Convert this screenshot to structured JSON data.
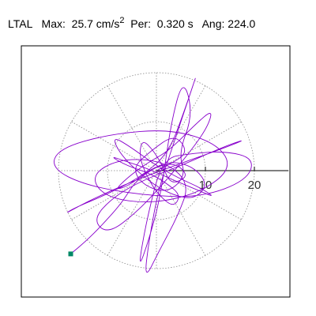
{
  "header": {
    "station": "LTAL",
    "max_label": "Max:",
    "max_value": "25.7 cm/s",
    "max_exp": "2",
    "per_label": "Per:",
    "per_value": "0.320 s",
    "ang_label": "Ang:",
    "ang_value": "224.0"
  },
  "colors": {
    "trace": "#8800cc",
    "grid": "#888888",
    "axis": "#000000",
    "end_marker": "#008866"
  },
  "chart_data": {
    "type": "particle-motion polar plot",
    "title": "LTAL   Max:  25.7 cm/s2  Per:  0.320 s   Ang: 224.0",
    "radial_ticks": [
      10,
      20
    ],
    "radial_tick_labels": [
      "10",
      "20"
    ],
    "rings": [
      10,
      20
    ],
    "spokes_deg": [
      0,
      30,
      60,
      90,
      120,
      150,
      180,
      210,
      240,
      270,
      300,
      330
    ],
    "rmax": 26,
    "grid": true,
    "end_marker": {
      "x": -17.5,
      "y": -17.0
    },
    "trace": [
      [
        0.0,
        0.0
      ],
      [
        3.2,
        1.5
      ],
      [
        6.5,
        3.8
      ],
      [
        3.8,
        7.5
      ],
      [
        -1.2,
        4.0
      ],
      [
        -5.0,
        0.5
      ],
      [
        -2.5,
        -3.2
      ],
      [
        2.5,
        -4.5
      ],
      [
        6.0,
        -1.0
      ],
      [
        4.5,
        3.5
      ],
      [
        7.5,
        11.5
      ],
      [
        5.5,
        19.0
      ],
      [
        3.0,
        10.0
      ],
      [
        0.8,
        -5.5
      ],
      [
        -1.5,
        -14.0
      ],
      [
        -3.8,
        -20.5
      ],
      [
        -2.0,
        -10.0
      ],
      [
        1.2,
        2.5
      ],
      [
        7.0,
        3.5
      ],
      [
        14.0,
        4.0
      ],
      [
        20.0,
        2.5
      ],
      [
        18.5,
        -2.0
      ],
      [
        9.0,
        -5.5
      ],
      [
        -3.0,
        -5.0
      ],
      [
        -14.5,
        -3.0
      ],
      [
        -21.5,
        0.5
      ],
      [
        -20.0,
        4.5
      ],
      [
        -9.5,
        7.5
      ],
      [
        3.0,
        8.5
      ],
      [
        12.5,
        5.5
      ],
      [
        15.5,
        0.5
      ],
      [
        9.0,
        -4.5
      ],
      [
        -1.0,
        -6.8
      ],
      [
        -10.5,
        -5.5
      ],
      [
        -13.5,
        -1.0
      ],
      [
        -7.5,
        2.5
      ],
      [
        1.5,
        2.0
      ],
      [
        6.8,
        -2.5
      ],
      [
        4.5,
        -9.0
      ],
      [
        0.5,
        -16.5
      ],
      [
        -2.5,
        -22.5
      ],
      [
        -1.5,
        -14.0
      ],
      [
        0.5,
        -3.5
      ],
      [
        3.5,
        5.5
      ],
      [
        6.5,
        14.5
      ],
      [
        8.5,
        20.5
      ],
      [
        6.0,
        13.0
      ],
      [
        2.5,
        3.5
      ],
      [
        -3.5,
        -1.5
      ],
      [
        -10.5,
        -5.0
      ],
      [
        -16.5,
        -7.5
      ],
      [
        -19.0,
        -9.0
      ],
      [
        -13.5,
        -6.0
      ],
      [
        -4.5,
        -2.0
      ],
      [
        5.0,
        1.5
      ],
      [
        13.5,
        4.5
      ],
      [
        18.5,
        6.5
      ],
      [
        14.0,
        5.0
      ],
      [
        5.0,
        1.0
      ],
      [
        -2.5,
        -1.8
      ],
      [
        -9.0,
        -5.5
      ],
      [
        -13.0,
        -10.0
      ],
      [
        -10.0,
        -13.0
      ],
      [
        -4.0,
        -8.5
      ],
      [
        2.0,
        -2.0
      ],
      [
        7.0,
        4.0
      ],
      [
        10.5,
        9.0
      ],
      [
        11.5,
        12.5
      ],
      [
        8.0,
        9.5
      ],
      [
        2.5,
        4.0
      ],
      [
        -2.0,
        1.5
      ],
      [
        -6.0,
        -1.5
      ],
      [
        -8.5,
        -4.0
      ],
      [
        -5.5,
        -3.0
      ],
      [
        -1.0,
        0.5
      ],
      [
        3.5,
        2.0
      ],
      [
        8.0,
        0.5
      ],
      [
        10.5,
        -3.0
      ],
      [
        7.5,
        -6.0
      ],
      [
        2.0,
        -4.5
      ],
      [
        -3.0,
        -1.0
      ],
      [
        -7.5,
        3.5
      ],
      [
        -9.0,
        7.0
      ],
      [
        -5.5,
        5.0
      ],
      [
        0.0,
        1.0
      ],
      [
        4.5,
        -1.5
      ],
      [
        9.0,
        -3.5
      ],
      [
        12.0,
        -5.5
      ],
      [
        8.5,
        -4.0
      ],
      [
        2.5,
        -1.5
      ],
      [
        -2.0,
        0.5
      ],
      [
        -6.5,
        2.0
      ],
      [
        -9.5,
        3.0
      ],
      [
        -6.0,
        1.0
      ],
      [
        -1.5,
        -0.5
      ],
      [
        2.0,
        -2.5
      ],
      [
        5.0,
        -5.0
      ],
      [
        3.5,
        -7.5
      ],
      [
        0.5,
        -5.0
      ],
      [
        -1.5,
        -2.0
      ],
      [
        -3.5,
        2.5
      ],
      [
        -3.0,
        6.5
      ],
      [
        -0.5,
        4.0
      ],
      [
        1.5,
        0.5
      ],
      [
        2.5,
        -2.0
      ],
      [
        4.0,
        -2.5
      ],
      [
        6.5,
        -1.0
      ],
      [
        4.0,
        1.5
      ],
      [
        0.5,
        1.0
      ],
      [
        -2.0,
        -0.5
      ],
      [
        -4.5,
        -2.5
      ],
      [
        -7.0,
        -6.5
      ],
      [
        -11.0,
        -11.0
      ],
      [
        -14.5,
        -14.5
      ],
      [
        -17.5,
        -17.0
      ]
    ]
  }
}
